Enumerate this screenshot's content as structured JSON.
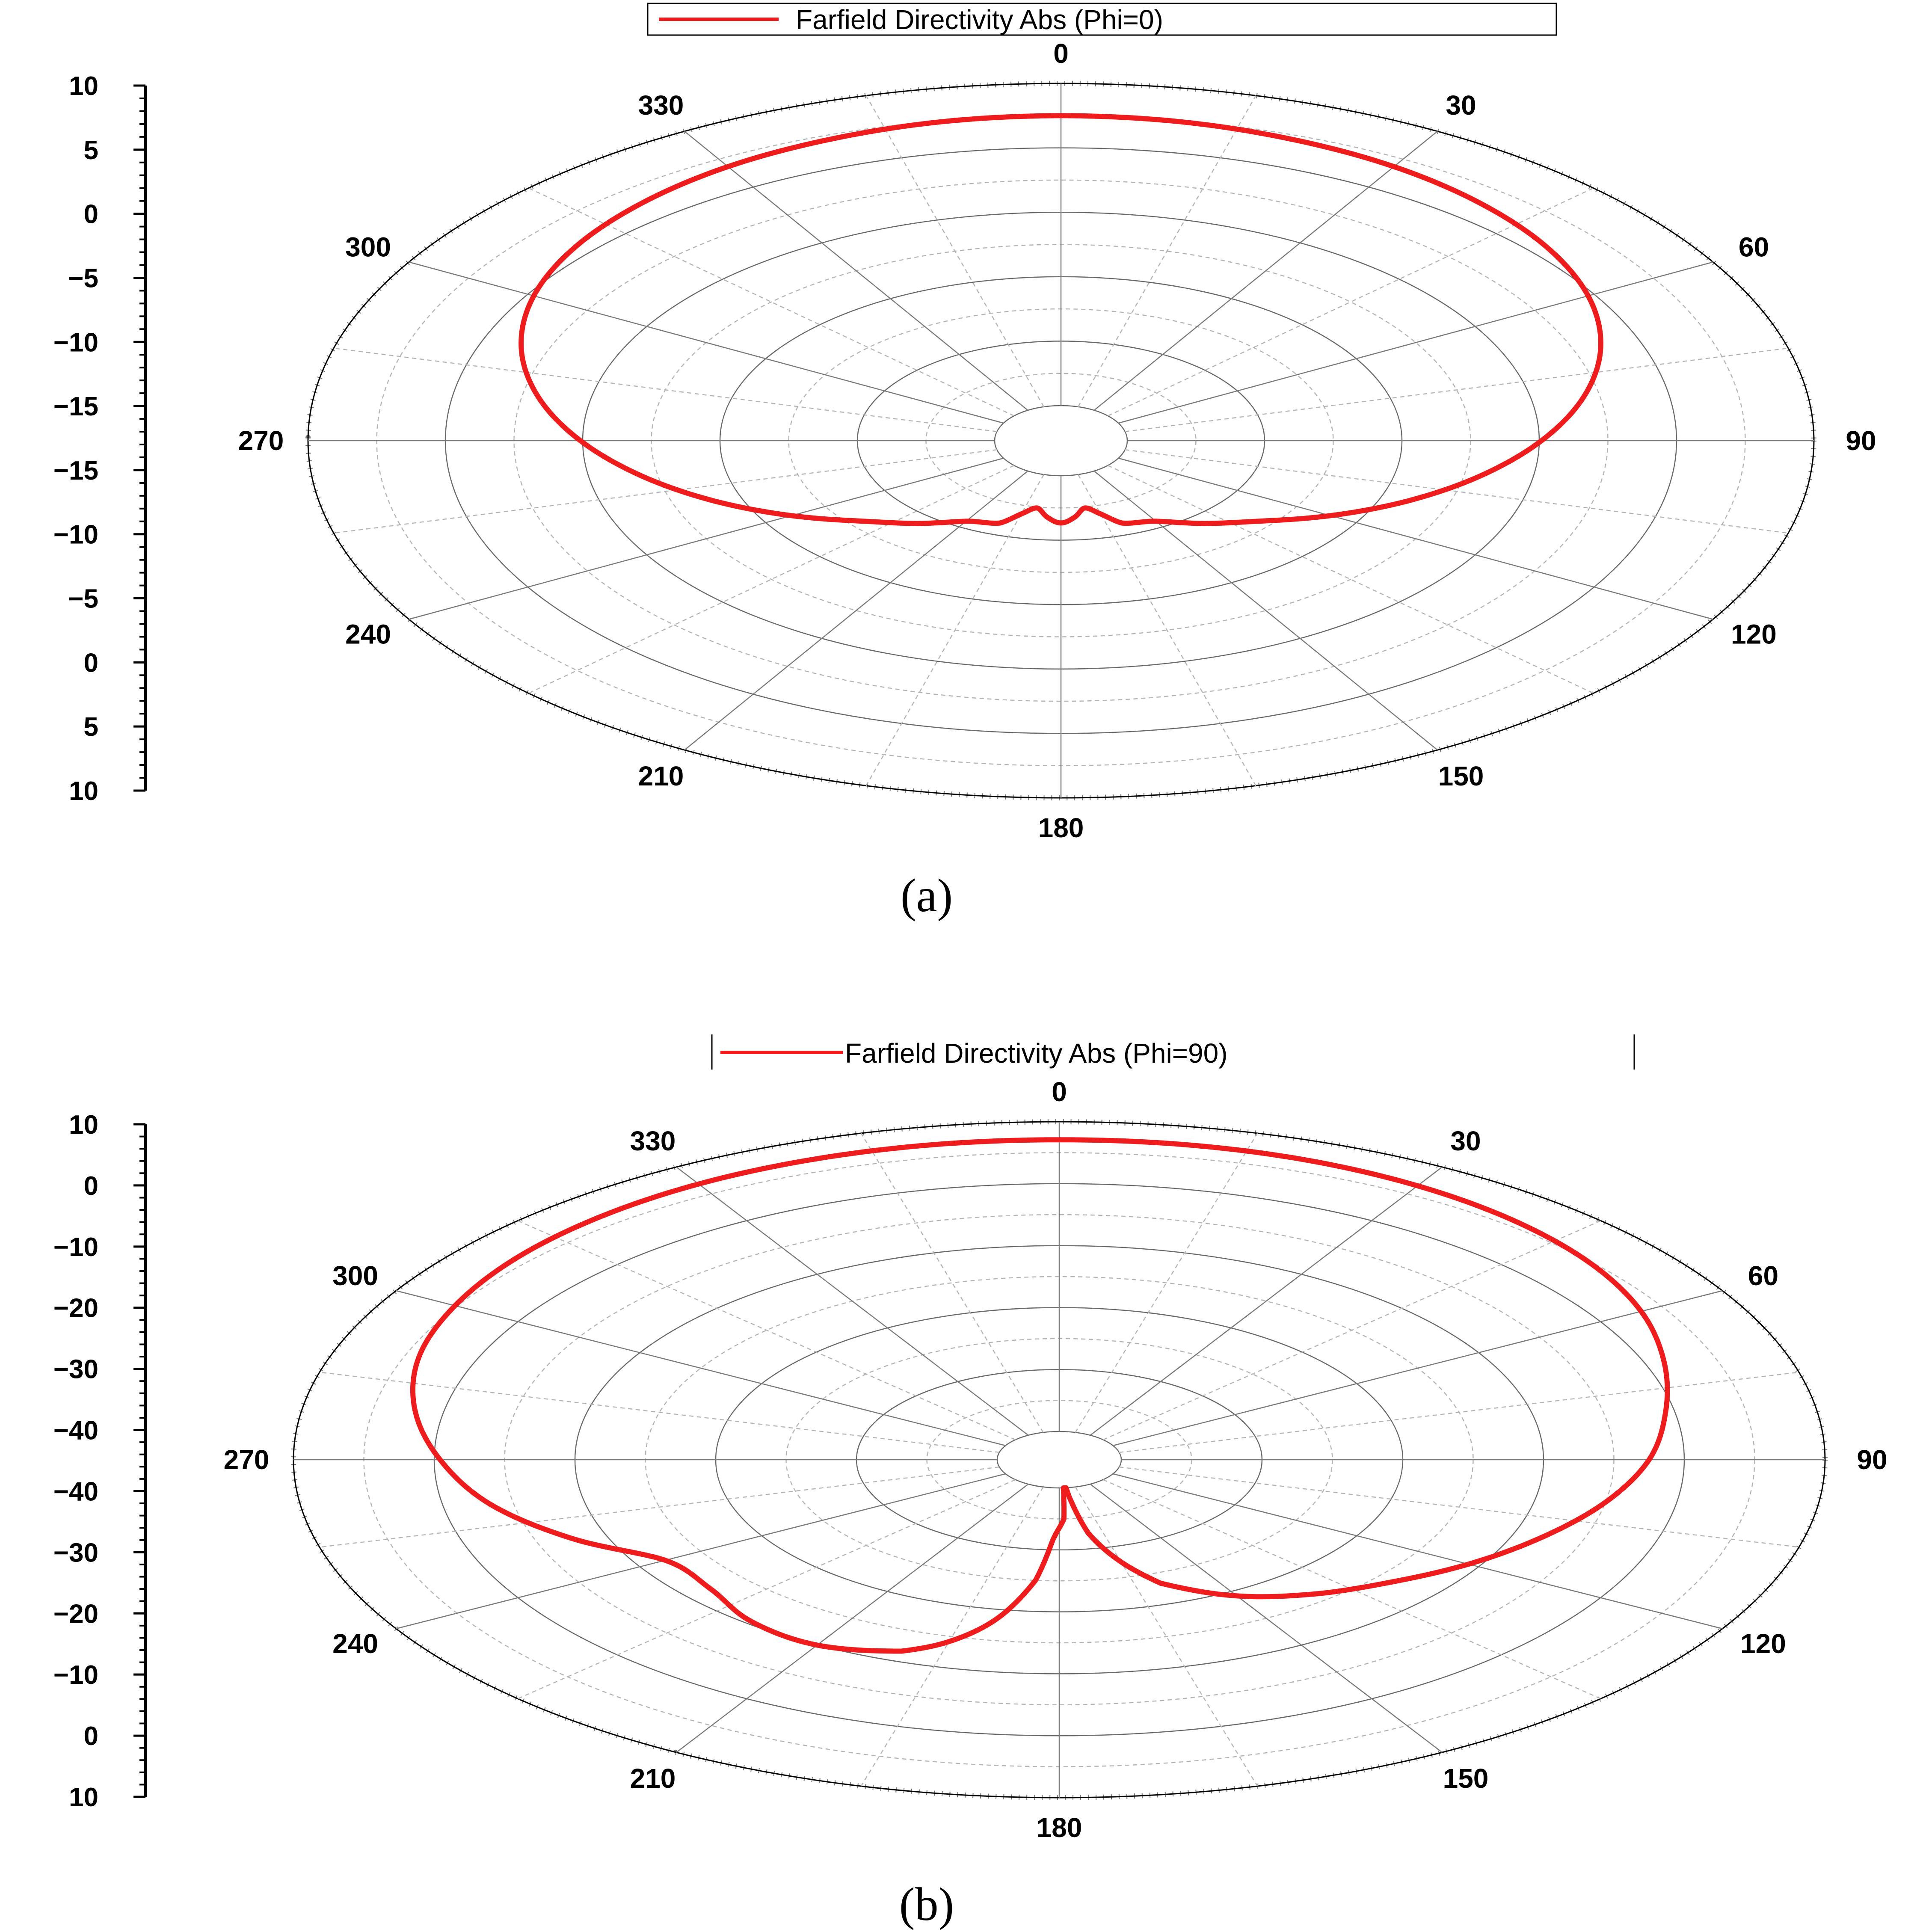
{
  "chart_data": [
    {
      "type": "polar-line",
      "panel_label": "(a)",
      "legend": {
        "label": "Farfield Directivity Abs (Phi=0)",
        "placement": "top-center",
        "boxed": true
      },
      "series": [
        {
          "name": "Farfield Directivity Abs (Phi=0)",
          "color": "#ee1c1c",
          "theta_deg": [
            0,
            10,
            20,
            30,
            40,
            50,
            60,
            70,
            80,
            90,
            100,
            110,
            120,
            130,
            140,
            150,
            160,
            165,
            170,
            175,
            180,
            185,
            190,
            195,
            200,
            210,
            220,
            230,
            240,
            250,
            260,
            270,
            280,
            290,
            300,
            310,
            320,
            330,
            340,
            350,
            360
          ],
          "r_value": [
            7,
            6.9,
            6.6,
            6.2,
            5.6,
            4.8,
            3.7,
            2.2,
            0.3,
            -1.9,
            -4.3,
            -6.8,
            -9.3,
            -11.6,
            -13.2,
            -14.6,
            -15.1,
            -16.2,
            -16.9,
            -16.1,
            -15.6,
            -16.1,
            -16.9,
            -16.2,
            -15.1,
            -14.6,
            -13.2,
            -11.6,
            -9.3,
            -6.8,
            -4.3,
            -1.9,
            0.3,
            2.2,
            3.7,
            4.8,
            5.6,
            6.2,
            6.6,
            6.9,
            7
          ]
        }
      ],
      "angular_axis": {
        "ticks": [
          "0",
          "30",
          "60",
          "90",
          "120",
          "150",
          "180",
          "210",
          "240",
          "270",
          "300",
          "330"
        ],
        "direction": "clockwise",
        "zero_location": "top",
        "grid": true
      },
      "radial_axis": {
        "tick_labels": [
          "10",
          "5",
          "0",
          "−5",
          "−10",
          "−15",
          "−15",
          "−10",
          "−5",
          "0",
          "5",
          "10"
        ],
        "range": [
          -20,
          10
        ],
        "grid": true
      }
    },
    {
      "type": "polar-line",
      "panel_label": "(b)",
      "legend": {
        "label": "Farfield Directivity Abs (Phi=90)",
        "placement": "top-center",
        "boxed": true
      },
      "series": [
        {
          "name": "Farfield Directivity Abs (Phi=90)",
          "color": "#ee1c1c",
          "theta_deg": [
            0,
            10,
            20,
            30,
            40,
            50,
            60,
            70,
            80,
            90,
            100,
            110,
            120,
            130,
            140,
            150,
            160,
            165,
            170,
            173,
            175,
            177,
            178,
            182,
            185,
            190,
            195,
            200,
            210,
            220,
            230,
            240,
            250,
            260,
            270,
            280,
            290,
            300,
            310,
            320,
            330,
            340,
            350,
            360
          ],
          "r_value": [
            6.5,
            6.5,
            6.3,
            5.8,
            5.0,
            3.8,
            2.0,
            -0.4,
            -2.8,
            -5.0,
            -8.0,
            -11.5,
            -15.0,
            -18.5,
            -21.5,
            -25.0,
            -30.0,
            -35.0,
            -41.0,
            -48.0,
            -52.0,
            -48.0,
            -44.0,
            -40.0,
            -32.0,
            -24.0,
            -19.0,
            -16.0,
            -14.0,
            -14.5,
            -16.5,
            -16.5,
            -11.0,
            -6.0,
            -2.5,
            0.5,
            2.8,
            4.2,
            5.2,
            5.8,
            6.2,
            6.4,
            6.5,
            6.5
          ]
        }
      ],
      "angular_axis": {
        "ticks": [
          "0",
          "30",
          "60",
          "90",
          "120",
          "150",
          "180",
          "210",
          "240",
          "270",
          "300",
          "330"
        ],
        "direction": "clockwise",
        "zero_location": "top",
        "grid": true
      },
      "radial_axis": {
        "tick_labels": [
          "10",
          "0",
          "−10",
          "−20",
          "−30",
          "−40",
          "−40",
          "−30",
          "−20",
          "−10",
          "0",
          "10"
        ],
        "range": [
          -50,
          10
        ],
        "grid": true
      }
    }
  ]
}
